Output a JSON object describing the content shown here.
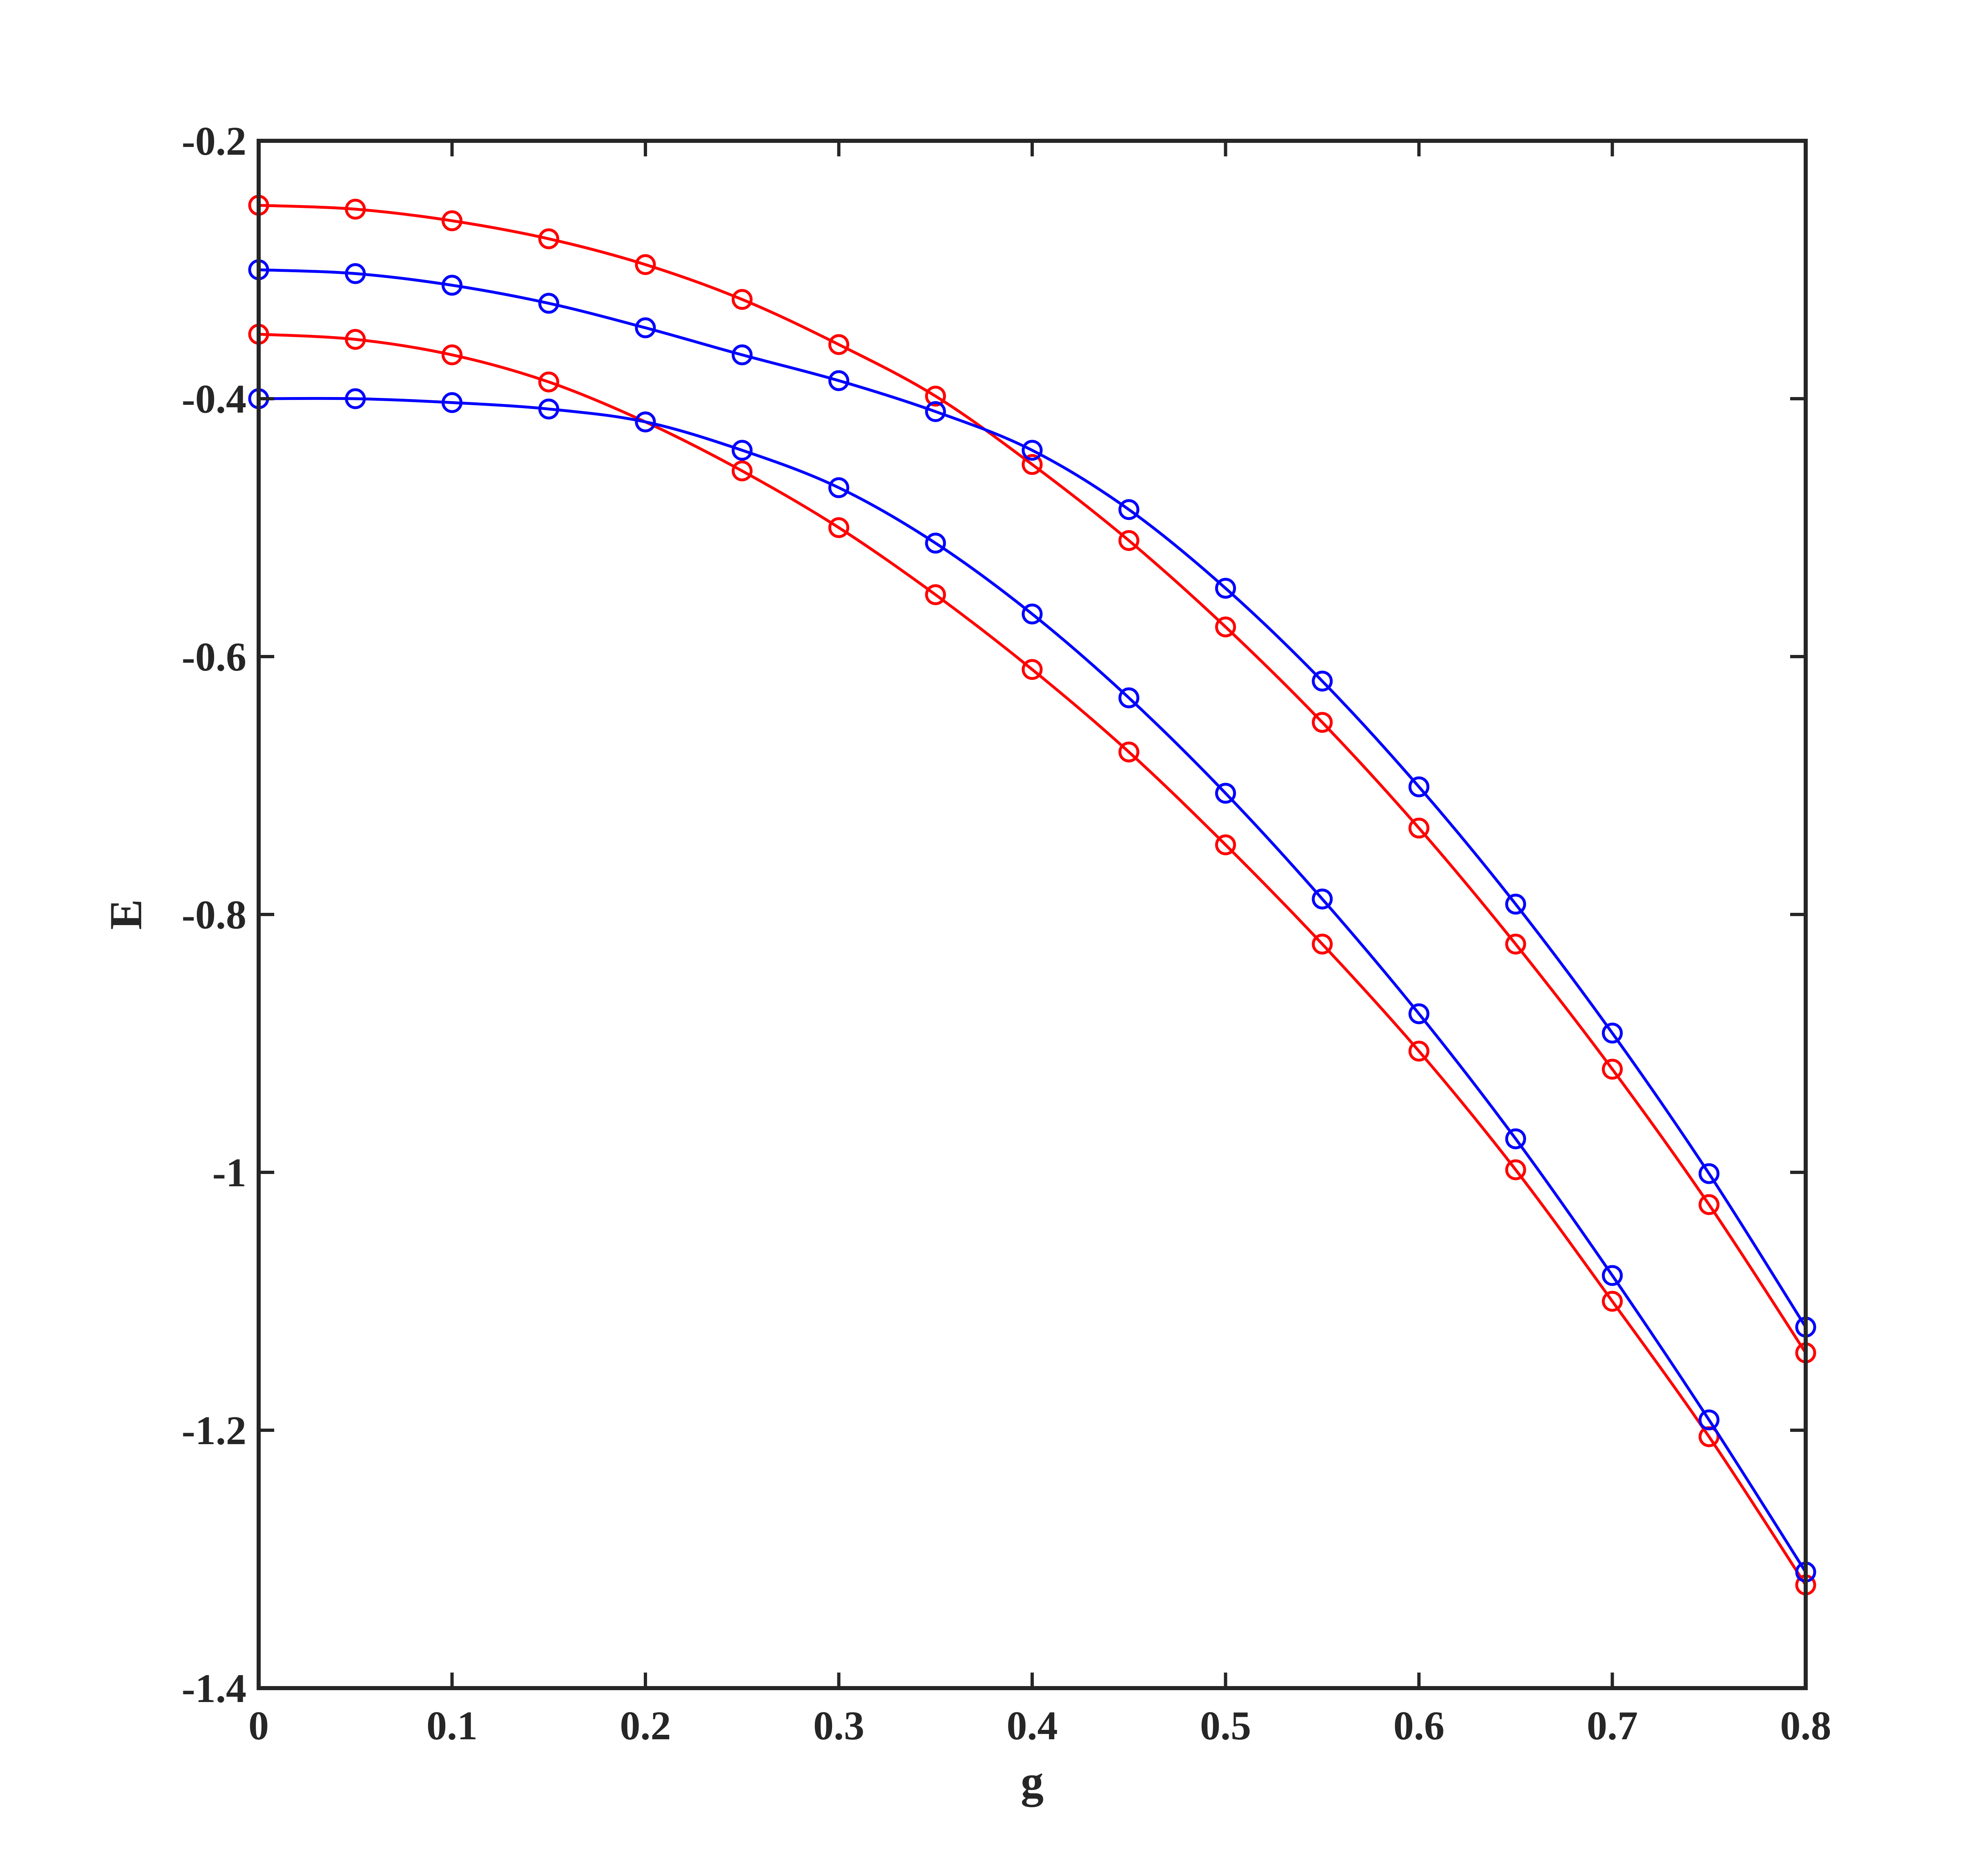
{
  "chart_data": {
    "type": "line",
    "title": "",
    "xlabel": "g",
    "ylabel": "E",
    "xlim": [
      0,
      0.8
    ],
    "ylim": [
      -1.4,
      -0.2
    ],
    "xticks": [
      0,
      0.1,
      0.2,
      0.3,
      0.4,
      0.5,
      0.6,
      0.7,
      0.8
    ],
    "xtick_labels": [
      "0",
      "0.1",
      "0.2",
      "0.3",
      "0.4",
      "0.5",
      "0.6",
      "0.7",
      "0.8"
    ],
    "yticks": [
      -1.4,
      -1.2,
      -1.0,
      -0.8,
      -0.6,
      -0.4,
      -0.2
    ],
    "ytick_labels": [
      "-1.4",
      "-1.2",
      "-1",
      "-0.8",
      "-0.6",
      "-0.4",
      "-0.2"
    ],
    "grid": false,
    "legend": "none",
    "markers": "open circles",
    "x": [
      0,
      0.05,
      0.1,
      0.15,
      0.2,
      0.25,
      0.3,
      0.35,
      0.4,
      0.45,
      0.5,
      0.55,
      0.6,
      0.65,
      0.7,
      0.75,
      0.8
    ],
    "series": [
      {
        "color": "#ff0000",
        "values": [
          -0.25,
          -0.253,
          -0.262,
          -0.276,
          -0.296,
          -0.323,
          -0.358,
          -0.398,
          -0.451,
          -0.51,
          -0.577,
          -0.651,
          -0.733,
          -0.823,
          -0.92,
          -1.025,
          -1.14
        ]
      },
      {
        "color": "#0000ff",
        "values": [
          -0.3,
          -0.303,
          -0.312,
          -0.326,
          -0.345,
          -0.366,
          -0.386,
          -0.41,
          -0.44,
          -0.486,
          -0.547,
          -0.619,
          -0.701,
          -0.792,
          -0.892,
          -1.001,
          -1.12
        ]
      },
      {
        "color": "#ff0000",
        "values": [
          -0.35,
          -0.354,
          -0.366,
          -0.387,
          -0.418,
          -0.456,
          -0.5,
          -0.552,
          -0.61,
          -0.674,
          -0.746,
          -0.823,
          -0.906,
          -0.998,
          -1.1,
          -1.205,
          -1.32
        ]
      },
      {
        "color": "#0000ff",
        "values": [
          -0.4,
          -0.4,
          -0.403,
          -0.408,
          -0.418,
          -0.44,
          -0.469,
          -0.512,
          -0.567,
          -0.632,
          -0.706,
          -0.788,
          -0.877,
          -0.974,
          -1.08,
          -1.192,
          -1.31
        ]
      }
    ]
  }
}
